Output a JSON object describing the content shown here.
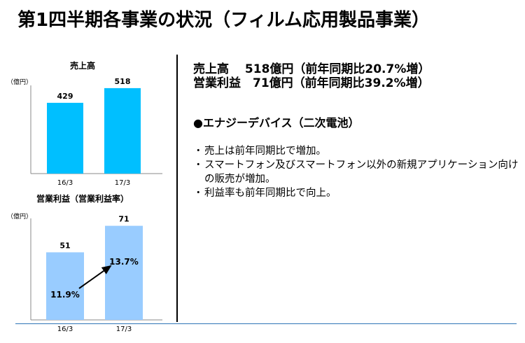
{
  "page": {
    "title": "第1四半期各事業の状況（フィルム応用製品事業）"
  },
  "summary": {
    "sales_line": "売上高　 518億円（前年同期比20.7%増）",
    "profit_line": "営業利益　71億円（前年同期比39.2%増）"
  },
  "section": {
    "heading": "●エナジーデバイス（二次電池）",
    "bullet_mark": "・",
    "bullets": [
      "売上は前年同期比で増加。",
      "スマートフォン及びスマートフォン以外の新規アプリケーション向けの販売が増加。",
      "利益率も前年同期比で向上。"
    ]
  },
  "colors": {
    "sales_bar": "#00bfff",
    "profit_bar": "#99ccff",
    "rule": "#2e75b6"
  },
  "chart_data": [
    {
      "type": "bar",
      "title": "売上高",
      "unit_label": "（億円）",
      "categories": [
        "16/3",
        "17/3"
      ],
      "values": [
        429,
        518
      ],
      "value_labels": [
        "429",
        "518"
      ],
      "ylim": [
        0,
        560
      ]
    },
    {
      "type": "bar",
      "title": "営業利益（営業利益率）",
      "unit_label": "（億円）",
      "categories": [
        "16/3",
        "17/3"
      ],
      "values": [
        51,
        71
      ],
      "value_labels": [
        "51",
        "71"
      ],
      "margins": [
        "11.9%",
        "13.7%"
      ],
      "ylim": [
        0,
        75
      ]
    }
  ]
}
